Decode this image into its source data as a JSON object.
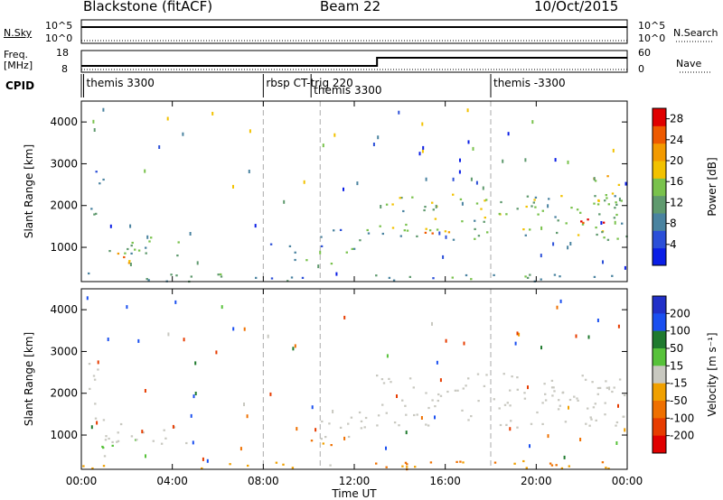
{
  "header": {
    "title": "Blackstone (fitACF)",
    "beam": "Beam 22",
    "date": "10/Oct/2015"
  },
  "summary_panels": {
    "nsky": {
      "label": "N.Sky",
      "ticks": [
        "10^5",
        "10^0"
      ],
      "right_label": "N.Search",
      "right_ticks": [
        "10^5",
        "10^0"
      ]
    },
    "freq": {
      "label_line1": "Freq.",
      "label_line2": "[MHz]",
      "ticks": [
        "18",
        "8"
      ],
      "right_ticks": [
        "60",
        "0"
      ],
      "right_label": "Nave"
    },
    "cpid": {
      "label": "CPID",
      "entries": [
        {
          "time_h": 0.1,
          "text": "themis 3300"
        },
        {
          "time_h": 8.0,
          "text": "rbsp CT-trig 220"
        },
        {
          "time_h": 10.1,
          "text": "themis 3300"
        },
        {
          "time_h": 18.0,
          "text": "themis -3300"
        }
      ]
    }
  },
  "colors": {
    "power": [
      "#0a1ee6",
      "#2b4fd8",
      "#4a83a0",
      "#5f9a6e",
      "#79c24c",
      "#f2c200",
      "#f39a00",
      "#ee5a00",
      "#e00000"
    ],
    "velocity": [
      "#2130c8",
      "#1a4ff0",
      "#1f7a2e",
      "#57c23a",
      "#c8c8c0",
      "#f0a000",
      "#ef7000",
      "#e73c00",
      "#e00000"
    ]
  },
  "chart_data": [
    {
      "type": "heatmap",
      "title": "Power",
      "xlabel": "",
      "ylabel": "Slant Range [km]",
      "xlim": [
        0,
        24
      ],
      "ylim": [
        180,
        4500
      ],
      "x_ticks": [
        "00:00",
        "04:00",
        "08:00",
        "12:00",
        "16:00",
        "20:00",
        "00:00"
      ],
      "y_ticks": [
        1000,
        2000,
        3000,
        4000
      ],
      "colorbar": {
        "label": "Power [dB]",
        "ticks": [
          4,
          8,
          12,
          16,
          20,
          24,
          28
        ],
        "range": [
          0,
          30
        ]
      },
      "regions": [
        {
          "t": [
            0.4,
            1.0
          ],
          "r": [
            1300,
            2000
          ],
          "level": 10
        },
        {
          "t": [
            0.6,
            2.4
          ],
          "r": [
            600,
            1000
          ],
          "level": 20
        },
        {
          "t": [
            1.0,
            4.5
          ],
          "r": [
            800,
            1300
          ],
          "level": 12
        },
        {
          "t": [
            0.5,
            1.0
          ],
          "r": [
            2200,
            2900
          ],
          "level": 6
        },
        {
          "t": [
            8.0,
            9.2
          ],
          "r": [
            950,
            1200
          ],
          "level": 6
        },
        {
          "t": [
            9.2,
            11.2
          ],
          "r": [
            600,
            900
          ],
          "level": 12
        },
        {
          "t": [
            10.5,
            12.8
          ],
          "r": [
            900,
            1500
          ],
          "level": 10
        },
        {
          "t": [
            12.8,
            24.0
          ],
          "r": [
            1200,
            2300
          ],
          "level": 14
        },
        {
          "t": [
            15.0,
            17.0
          ],
          "r": [
            1350,
            1600
          ],
          "level": 24
        },
        {
          "t": [
            21.0,
            23.0
          ],
          "r": [
            1400,
            1700
          ],
          "level": 26
        },
        {
          "t": [
            22.5,
            24.0
          ],
          "r": [
            2000,
            2800
          ],
          "level": 18
        },
        {
          "t": [
            0.0,
            24.0
          ],
          "r": [
            200,
            400
          ],
          "level": 10
        }
      ]
    },
    {
      "type": "heatmap",
      "title": "Velocity",
      "xlabel": "Time UT",
      "ylabel": "Slant Range [km]",
      "xlim": [
        0,
        24
      ],
      "ylim": [
        180,
        4500
      ],
      "x_ticks": [
        "00:00",
        "04:00",
        "08:00",
        "12:00",
        "16:00",
        "20:00",
        "00:00"
      ],
      "y_ticks": [
        1000,
        2000,
        3000,
        4000
      ],
      "colorbar": {
        "label": "Velocity [m s⁻¹]",
        "ticks": [
          200,
          100,
          50,
          15,
          -15,
          -50,
          -100,
          -200
        ],
        "range": [
          -250,
          250
        ]
      },
      "regions": [
        {
          "t": [
            0.3,
            1.0
          ],
          "r": [
            1300,
            2800
          ],
          "level": 0
        },
        {
          "t": [
            1.0,
            4.8
          ],
          "r": [
            800,
            1300
          ],
          "level": 0
        },
        {
          "t": [
            0.6,
            2.5
          ],
          "r": [
            500,
            1100
          ],
          "level": 30
        },
        {
          "t": [
            9.5,
            11.2
          ],
          "r": [
            650,
            900
          ],
          "level": -60
        },
        {
          "t": [
            10.5,
            12.8
          ],
          "r": [
            900,
            1700
          ],
          "level": 0
        },
        {
          "t": [
            12.8,
            24.0
          ],
          "r": [
            1200,
            2500
          ],
          "level": 0
        },
        {
          "t": [
            0.0,
            24.0
          ],
          "r": [
            200,
            400
          ],
          "level": -40
        }
      ]
    }
  ]
}
